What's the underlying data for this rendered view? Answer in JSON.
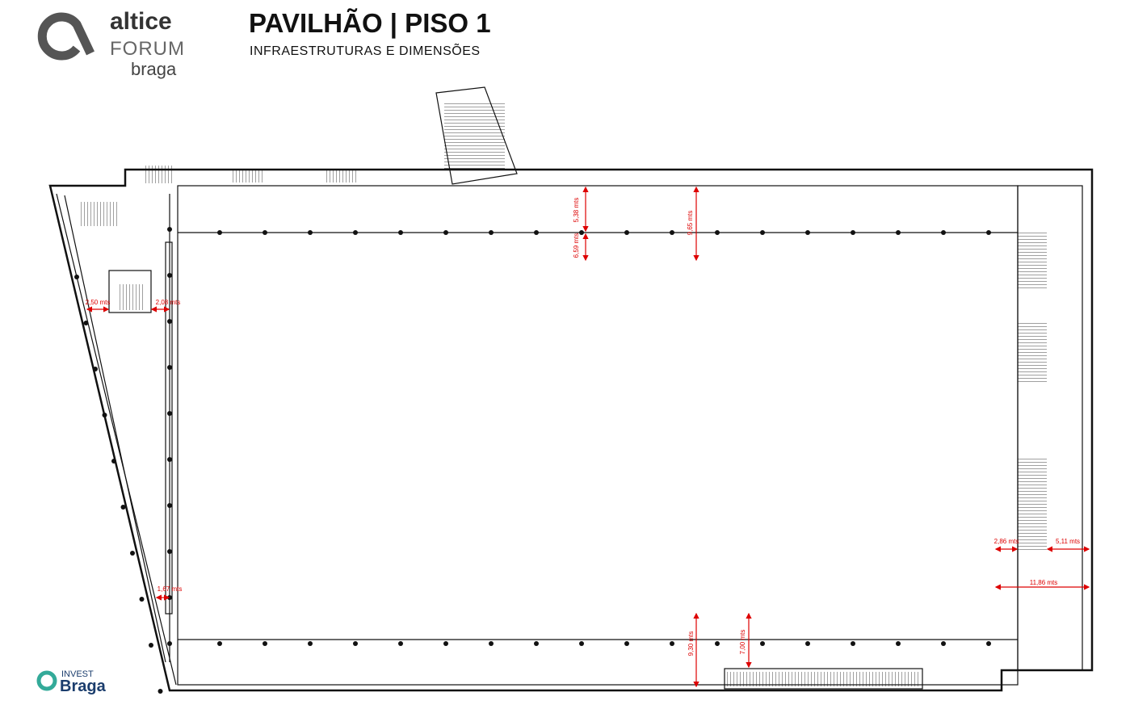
{
  "logo": {
    "brand": "altice",
    "name": "FORUM",
    "city": "braga"
  },
  "header": {
    "title": "PAVILHÃO | PISO 1",
    "subtitle": "INFRAESTRUTURAS E DIMENSÕES"
  },
  "dimensions": [
    "5,38 mts",
    "6,59 mts",
    "9,65 mts",
    "2,50 mts",
    "2,08 mts",
    "1,67 mts",
    "2,86 mts",
    "5,11 mts",
    "11,86 mts",
    "9,30 mts",
    "7,00 mts"
  ],
  "footer_logo": {
    "top": "INVEST",
    "bottom": "Braga"
  }
}
